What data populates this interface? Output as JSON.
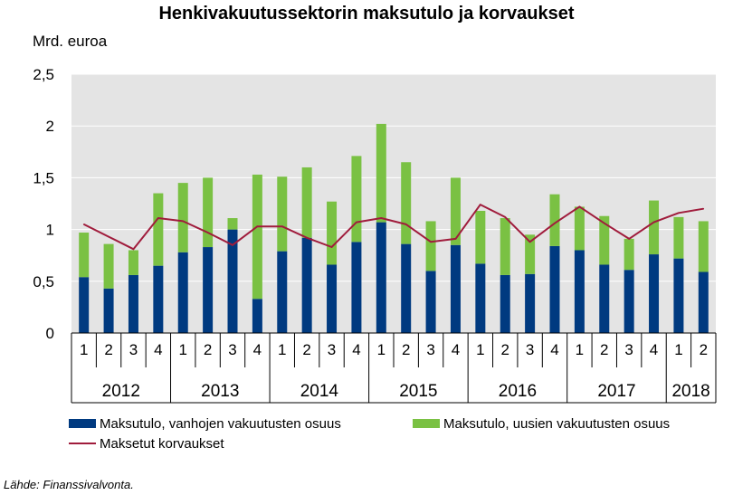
{
  "chart_data": {
    "type": "bar",
    "title": "Henkivakuutussektorin maksutulo ja korvaukset",
    "ylabel": "Mrd. euroa",
    "ylim": [
      0,
      2.5
    ],
    "yticks": [
      "0",
      "0,5",
      "1",
      "1,5",
      "2",
      "2,5"
    ],
    "grid": true,
    "legend_position": "bottom",
    "categories": [
      "1",
      "2",
      "3",
      "4",
      "1",
      "2",
      "3",
      "4",
      "1",
      "2",
      "3",
      "4",
      "1",
      "2",
      "3",
      "4",
      "1",
      "2",
      "3",
      "4",
      "1",
      "2",
      "3",
      "4",
      "1",
      "2"
    ],
    "years": [
      {
        "label": "2012",
        "quarters": 4
      },
      {
        "label": "2013",
        "quarters": 4
      },
      {
        "label": "2014",
        "quarters": 4
      },
      {
        "label": "2015",
        "quarters": 4
      },
      {
        "label": "2016",
        "quarters": 4
      },
      {
        "label": "2017",
        "quarters": 4
      },
      {
        "label": "2018",
        "quarters": 2
      }
    ],
    "series": [
      {
        "name": "Maksutulo, vanhojen vakuutusten osuus",
        "kind": "stacked-bar",
        "color": "#003A80",
        "values": [
          0.54,
          0.43,
          0.56,
          0.65,
          0.78,
          0.83,
          1.0,
          0.33,
          0.79,
          0.92,
          0.66,
          0.88,
          1.07,
          0.86,
          0.6,
          0.85,
          0.67,
          0.56,
          0.57,
          0.84,
          0.8,
          0.66,
          0.61,
          0.76,
          0.72,
          0.59
        ]
      },
      {
        "name": "Maksutulo, uusien vakuutusten osuus",
        "kind": "stacked-bar",
        "color": "#7AC143",
        "values": [
          0.43,
          0.43,
          0.24,
          0.7,
          0.67,
          0.67,
          0.11,
          1.2,
          0.72,
          0.68,
          0.61,
          0.83,
          0.95,
          0.79,
          0.48,
          0.65,
          0.51,
          0.55,
          0.38,
          0.5,
          0.42,
          0.47,
          0.3,
          0.52,
          0.4,
          0.49
        ]
      },
      {
        "name": "Maksetut korvaukset",
        "kind": "line",
        "color": "#A01C3C",
        "values": [
          1.05,
          0.93,
          0.81,
          1.11,
          1.08,
          0.97,
          0.85,
          1.03,
          1.03,
          0.92,
          0.83,
          1.07,
          1.11,
          1.05,
          0.88,
          0.91,
          1.24,
          1.12,
          0.88,
          1.06,
          1.22,
          1.06,
          0.91,
          1.07,
          1.16,
          1.2
        ]
      }
    ]
  },
  "source": "Lähde: Finanssivalvonta."
}
